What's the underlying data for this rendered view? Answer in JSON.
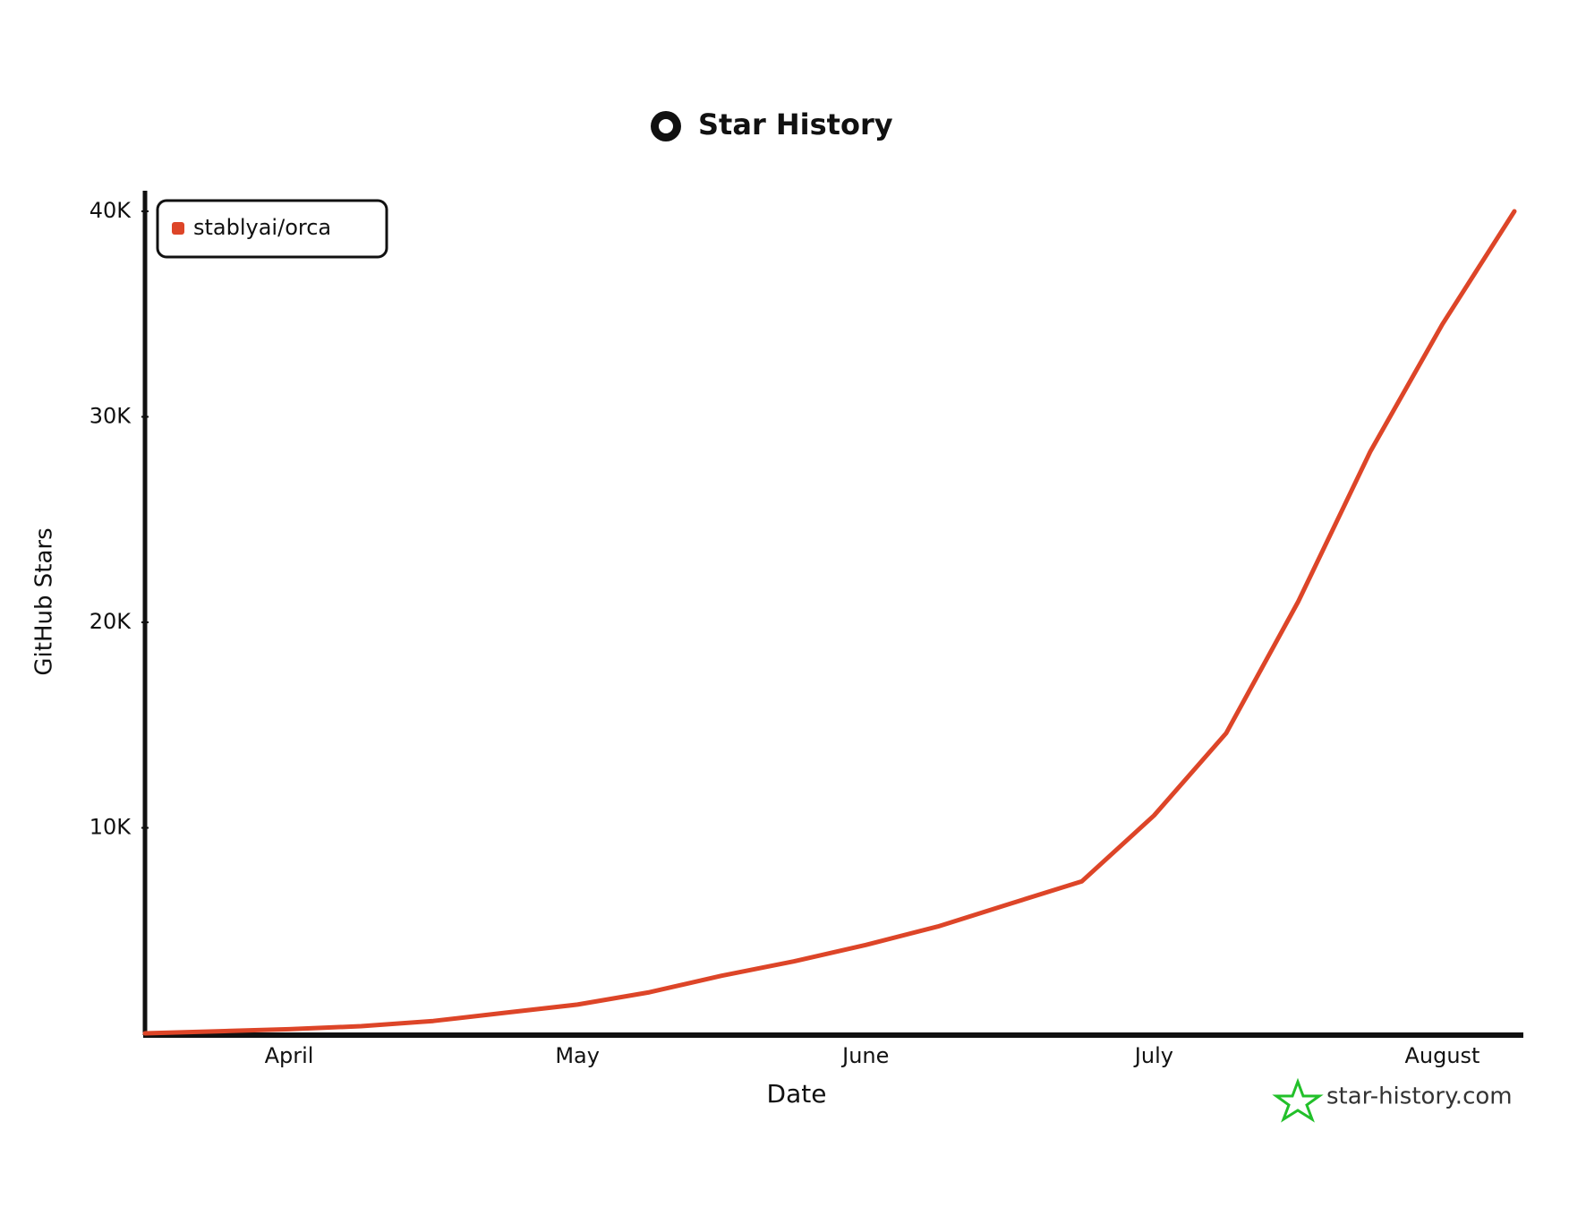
{
  "chart_data": {
    "type": "line",
    "title": "Star History",
    "xlabel": "Date",
    "ylabel": "GitHub Stars",
    "categories": [
      null,
      null,
      "April",
      null,
      null,
      null,
      "May",
      null,
      null,
      null,
      "June",
      null,
      null,
      null,
      "July",
      null,
      null,
      null,
      "August",
      null
    ],
    "series": [
      {
        "name": "stablyai/orca",
        "color": "#dd4528",
        "values": [
          0,
          100,
          200,
          350,
          600,
          1000,
          1400,
          2000,
          2800,
          3500,
          4300,
          5200,
          6300,
          7400,
          10600,
          14600,
          21000,
          28300,
          34500,
          40000
        ]
      }
    ],
    "ylim": [
      0,
      41000
    ],
    "yticks": [
      {
        "value": 10000,
        "label": "10K"
      },
      {
        "value": 20000,
        "label": "20K"
      },
      {
        "value": 30000,
        "label": "30K"
      },
      {
        "value": 40000,
        "label": "40K"
      }
    ],
    "grid": false,
    "legend": "top-left",
    "watermark": "star-history.com"
  }
}
